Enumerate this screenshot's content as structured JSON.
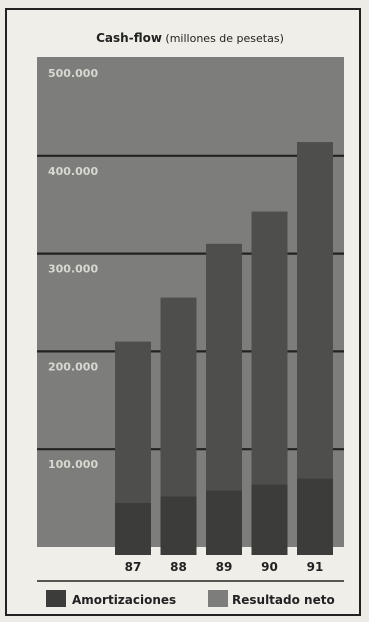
{
  "chart_data": {
    "type": "bar",
    "stacked": true,
    "title_main": "Cash-flow",
    "title_sub": " (millones de pesetas)",
    "categories": [
      "87",
      "88",
      "89",
      "90",
      "91"
    ],
    "series": [
      {
        "name": "Amortizaciones",
        "values": [
          45000,
          52000,
          58000,
          64000,
          70000
        ]
      },
      {
        "name": "Resultado neto",
        "values": [
          165000,
          203000,
          252000,
          279000,
          344000
        ]
      }
    ],
    "y_ticks": [
      "100.000",
      "200.000",
      "300.000",
      "400.000",
      "500.000"
    ],
    "ylim": [
      0,
      500000
    ],
    "grid": true,
    "legend_position": "bottom"
  },
  "colors": {
    "plot_bg": "#7d7d7b",
    "bar": "#4e4e4c",
    "bar_base": "#3c3c3a",
    "gridline": "#222222",
    "frame": "#222222",
    "text_dark": "#222222",
    "text_light": "#efeee8",
    "tick_text": "#d8d8d2"
  }
}
